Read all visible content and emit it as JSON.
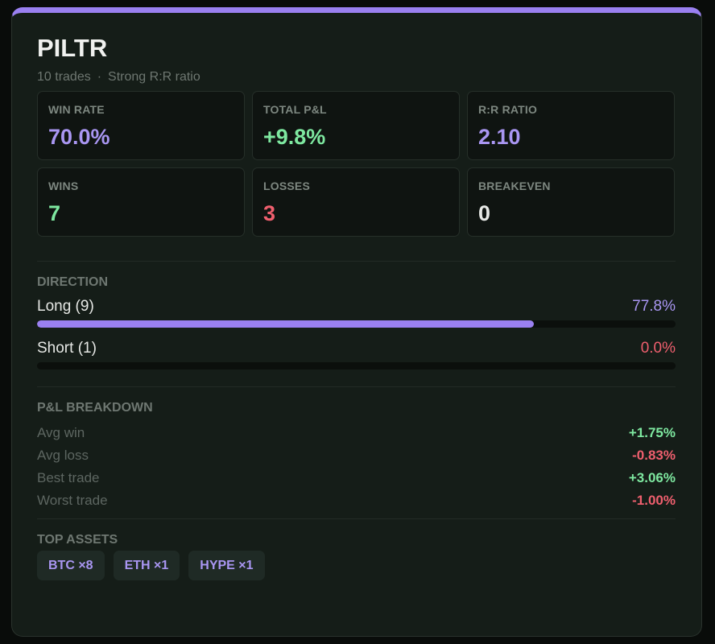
{
  "card": {
    "title": "PILTR",
    "trades": "10 trades",
    "separator": "·",
    "note": "Strong R:R ratio",
    "accent_color": "#9a80f0"
  },
  "stats": [
    {
      "label": "WIN RATE",
      "value": "70.0%",
      "color": "#a996f2"
    },
    {
      "label": "TOTAL P&L",
      "value": "+9.8%",
      "color": "#7ee8a0"
    },
    {
      "label": "R:R RATIO",
      "value": "2.10",
      "color": "#a996f2"
    },
    {
      "label": "WINS",
      "value": "7",
      "color": "#7ee8a0"
    },
    {
      "label": "LOSSES",
      "value": "3",
      "color": "#ef5f6e"
    },
    {
      "label": "BREAKEVEN",
      "value": "0",
      "color": "#e6e8e5"
    }
  ],
  "direction": {
    "label": "DIRECTION",
    "rows": [
      {
        "label": "Long (9)",
        "pct": "77.8%",
        "fraction": 0.778,
        "pct_color": "#a996f2"
      },
      {
        "label": "Short (1)",
        "pct": "0.0%",
        "fraction": 0.0,
        "pct_color": "#ef5f6e"
      }
    ]
  },
  "pl_breakdown": {
    "label": "P&L BREAKDOWN",
    "rows": [
      {
        "label": "Avg win",
        "value": "+1.75%",
        "color": "#7ee8a0"
      },
      {
        "label": "Avg loss",
        "value": "-0.83%",
        "color": "#ef5f6e"
      },
      {
        "label": "Best trade",
        "value": "+3.06%",
        "color": "#7ee8a0"
      },
      {
        "label": "Worst trade",
        "value": "-1.00%",
        "color": "#ef5f6e"
      }
    ]
  },
  "top_assets": {
    "label": "TOP ASSETS",
    "chips": [
      "BTC ×8",
      "ETH ×1",
      "HYPE ×1"
    ]
  }
}
